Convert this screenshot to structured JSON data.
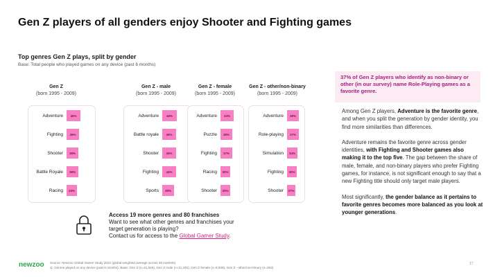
{
  "title": "Gen Z players of all genders enjoy Shooter and Fighting games",
  "subtitle": "Top genres Gen Z plays, split by gender",
  "base": "Base: Total people who played games on any device (past 6 months)",
  "columns": [
    {
      "title": "Gen Z",
      "years": "(born 1995 - 2009)",
      "rows": [
        {
          "genre": "Adventure",
          "value": 45,
          "label": "45%"
        },
        {
          "genre": "Fighting",
          "value": 39,
          "label": "39%"
        },
        {
          "genre": "Shooter",
          "value": 38,
          "label": "38%"
        },
        {
          "genre": "Battle Royale",
          "value": 38,
          "label": "38%"
        },
        {
          "genre": "Racing",
          "value": 33,
          "label": "33%"
        }
      ]
    },
    {
      "title": "Gen Z - male",
      "years": "(born 1995 - 2009)",
      "rows": [
        {
          "genre": "Adventure",
          "value": 46,
          "label": "46%"
        },
        {
          "genre": "Battle royale",
          "value": 45,
          "label": "45%"
        },
        {
          "genre": "Shooter",
          "value": 45,
          "label": "45%"
        },
        {
          "genre": "Fighting",
          "value": 44,
          "label": "44%"
        },
        {
          "genre": "Sports",
          "value": 38,
          "label": "38%"
        }
      ]
    },
    {
      "title": "Gen Z - female",
      "years": "(born 1995 - 2009)",
      "rows": [
        {
          "genre": "Adventure",
          "value": 43,
          "label": "43%"
        },
        {
          "genre": "Puzzle",
          "value": 38,
          "label": "38%"
        },
        {
          "genre": "Fighting",
          "value": 37,
          "label": "37%"
        },
        {
          "genre": "Racing",
          "value": 30,
          "label": "30%"
        },
        {
          "genre": "Shooter",
          "value": 30,
          "label": "30%"
        }
      ]
    },
    {
      "title": "Gen Z - other/non-binary",
      "years": "(born 1995 - 2009)",
      "rows": [
        {
          "genre": "Adventure",
          "value": 38,
          "label": "38%"
        },
        {
          "genre": "Role-playing",
          "value": 37,
          "label": "37%"
        },
        {
          "genre": "Simulation",
          "value": 34,
          "label": "34%"
        },
        {
          "genre": "Fighting",
          "value": 30,
          "label": "30%"
        },
        {
          "genre": "Shooter",
          "value": 27,
          "label": "27%"
        }
      ]
    }
  ],
  "promo": {
    "heading": "Access 19 more genres and 80 franchises",
    "line1": "Want to see what other genres and franchises your",
    "line2": "target generation is playing?",
    "line3": "Contact us for access to the ",
    "link": "Global Gamer Study",
    "end": "."
  },
  "callout": "37% of Gen Z players who identify as non-binary or other (in our survey) name Role-Playing games as a favorite genre.",
  "body": {
    "p1a": "Among Gen Z players, ",
    "p1b": "Adventure is the favorite genre",
    "p1c": ", and when you split the generation by gender identity, you find more similarities than differences.",
    "p2a": "Adventure remains the favorite genre across gender identities, ",
    "p2b": "with Fighting and Shooter games also making it to the top five",
    "p2c": ". The gap between the share of male, female, and non-binary players who prefer Fighting games, for instance, is not significant enough to say that a new Fighting title should only target male players.",
    "p3a": "Most significantly, ",
    "p3b": "the gender balance as it pertains to favorite genres becomes more balanced as you look at younger generations",
    "p3c": "."
  },
  "footer": {
    "logo": "newzoo",
    "source": "Source: Newzoo Global Gamer Study 2022 (global weighted average across 36 markets)",
    "question": "Q. Genres played on any device (past 6 months). Base: Gen Z (n=21,546), Gen Z male (n=11,345), Gen Z female (n=9,938), Gen Z - other/non-binary (n=263)",
    "page": "17"
  },
  "colors": {
    "bar": "#f77fc2",
    "accent": "#a21e7f",
    "brand": "#2aa84a"
  }
}
